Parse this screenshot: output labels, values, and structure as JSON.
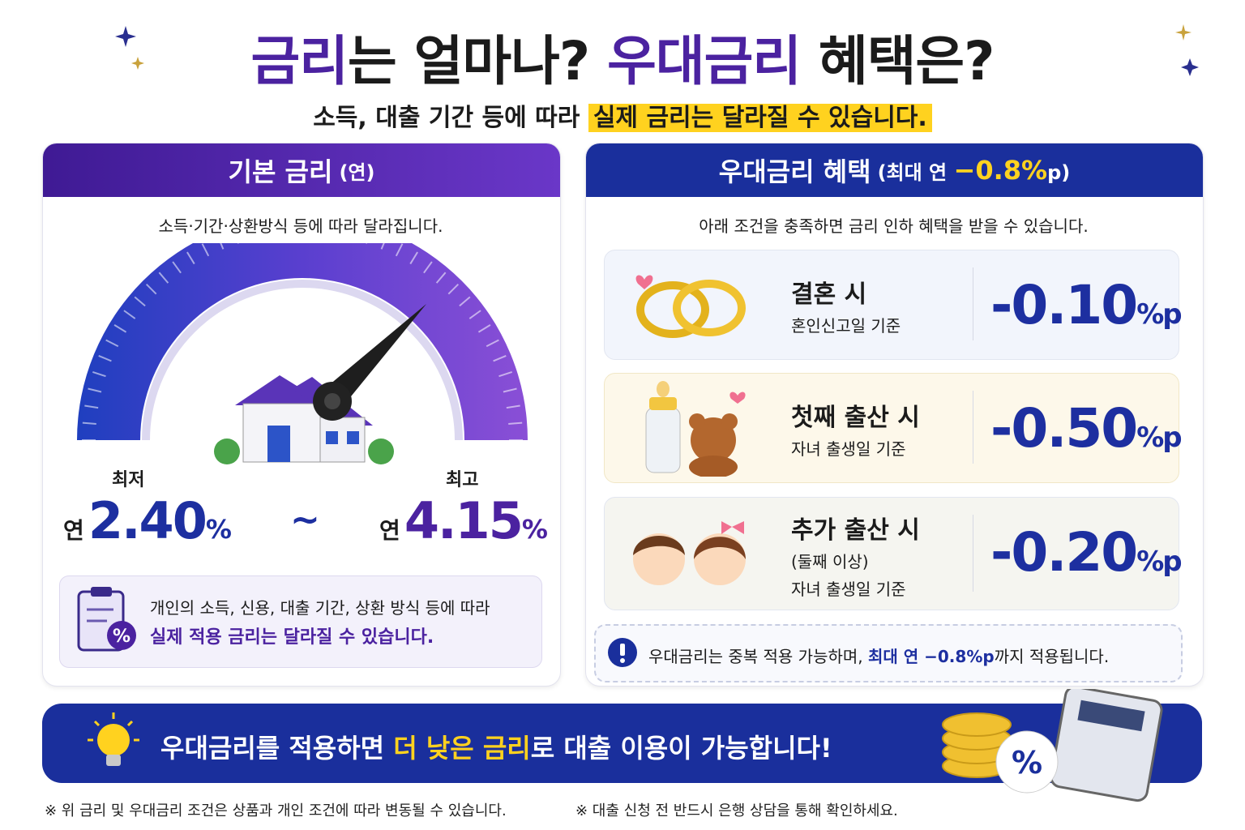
{
  "header": {
    "title_parts": [
      "금리",
      "는 얼마나? ",
      "우대금리",
      " 혜택은?"
    ],
    "subtitle_parts": [
      "소득, 대출 기간 등에 따라 ",
      "실제 금리는 달라질 수 있습니다."
    ]
  },
  "base_rate": {
    "heading": "기본 금리",
    "heading_note": "(연)",
    "description": "소득·기간·상환방식 등에 따라 달라집니다.",
    "min": {
      "label": "최저",
      "prefix": "연",
      "value": "2.40",
      "unit": "%"
    },
    "separator": "~",
    "max": {
      "label": "최고",
      "prefix": "연",
      "value": "4.15",
      "unit": "%"
    },
    "note_lines": [
      "개인의 소득, 신용, 대출 기간, 상환 방식 등에 따라",
      "실제 적용 금리는 달라질 수 있습니다."
    ]
  },
  "preferential": {
    "heading": "우대금리 혜택",
    "heading_note_parts": [
      "(최대 연",
      "−0.8%",
      "p)"
    ],
    "description": "아래 조건을 충족하면 금리 인하 혜택을 받을 수 있습니다.",
    "items": [
      {
        "title": "결혼 시",
        "details": [
          "혼인신고일 기준"
        ],
        "value": "-0.10",
        "unit": "%p"
      },
      {
        "title": "첫째 출산 시",
        "details": [
          "자녀 출생일 기준"
        ],
        "value": "-0.50",
        "unit": "%p"
      },
      {
        "title": "추가 출산 시",
        "details": [
          "(둘째 이상)",
          "자녀 출생일 기준"
        ],
        "value": "-0.20",
        "unit": "%p"
      }
    ],
    "note_parts": [
      "우대금리는 중복 적용 가능하며, ",
      "최대 연 −0.8%p",
      "까지 적용됩니다."
    ]
  },
  "banner": {
    "parts": [
      "우대금리를 적용하면 ",
      "더 낮은 금리",
      "로 대출 이용이 가능합니다!"
    ]
  },
  "footnotes": [
    "※ 위 금리 및 우대금리 조건은 상품과 개인 조건에 따라 변동될 수 있습니다.",
    "※ 대출 신청 전 반드시 은행 상담을 통해 확인하세요."
  ]
}
